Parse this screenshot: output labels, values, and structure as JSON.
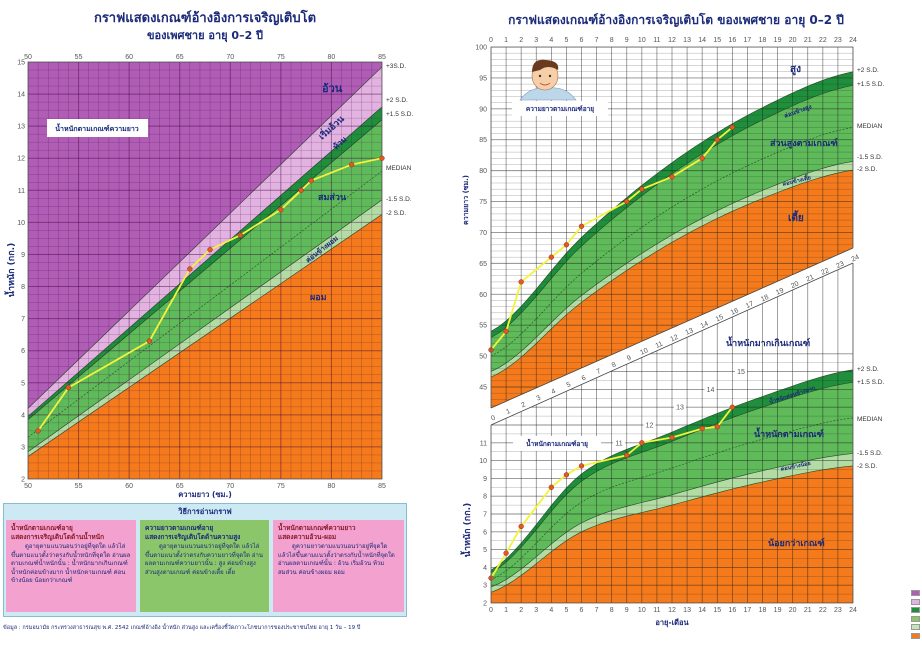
{
  "colors": {
    "obese": "#b05db6",
    "overweight_pink": "#e2b2e0",
    "dark_green": "#1f8f3c",
    "green": "#5fba5a",
    "light_green": "#b2dca4",
    "orange": "#f47a1c",
    "series_line": "#f4f23a",
    "series_point": "#e05a28",
    "title": "#1b2a7a"
  },
  "legend_swatches": [
    "#b05db6",
    "#e2b2e0",
    "#1f8f3c",
    "#8cc66a",
    "#c7e3bb",
    "#f47a1c"
  ],
  "chart_data": [
    {
      "type": "line",
      "title": "กราฟแสดงเกณฑ์อ้างอิงการเจริญเติบโต",
      "subtitle": "ของเพศชาย อายุ 0–2 ปี",
      "xlabel": "ความยาว (ซม.)",
      "ylabel": "น้ำหนัก (กก.)",
      "box_label": "น้ำหนักตามเกณฑ์ความยาว",
      "xlim": [
        50,
        85
      ],
      "ylim": [
        2,
        15
      ],
      "x_ticks": [
        50,
        55,
        60,
        65,
        70,
        75,
        80,
        85
      ],
      "y_ticks": [
        2,
        3,
        4,
        5,
        6,
        7,
        8,
        9,
        10,
        11,
        12,
        13,
        14,
        15
      ],
      "grid": true,
      "reference_lines": [
        {
          "label": "+3S.D.",
          "x": [
            50,
            85
          ],
          "y": [
            4.2,
            14.85
          ]
        },
        {
          "label": "+2 S.D.",
          "x": [
            50,
            85
          ],
          "y": [
            3.95,
            13.6
          ]
        },
        {
          "label": "+1.5 S.D.",
          "x": [
            50,
            85
          ],
          "y": [
            3.85,
            13.2
          ]
        },
        {
          "label": "MEDIAN",
          "x": [
            50,
            85
          ],
          "y": [
            3.3,
            11.6
          ]
        },
        {
          "label": "-1.5 S.D.",
          "x": [
            50,
            85
          ],
          "y": [
            2.85,
            10.7
          ]
        },
        {
          "label": "-2 S.D.",
          "x": [
            50,
            85
          ],
          "y": [
            2.7,
            10.25
          ]
        }
      ],
      "zones": [
        "อ้วน",
        "เริ่มอ้วน",
        "ท้วม",
        "สมส่วน",
        "ค่อนข้างผอม",
        "ผอม"
      ],
      "series": [
        {
          "x": [
            51,
            54,
            62,
            66,
            68,
            71,
            75,
            77,
            78,
            82,
            85
          ],
          "y": [
            3.5,
            4.85,
            6.3,
            8.55,
            9.15,
            9.6,
            10.4,
            11.0,
            11.3,
            11.8,
            12.0
          ]
        }
      ]
    },
    {
      "type": "line",
      "title": "กราฟแสดงเกณฑ์อ้างอิงการเจริญเติบโต ของเพศชาย อายุ 0–2 ปี",
      "ylabel": "ความยาว (ซม.)",
      "box_label": "ความยาวตามเกณฑ์อายุ",
      "xlim": [
        0,
        24
      ],
      "ylim": [
        45,
        100
      ],
      "x_ticks": [
        0,
        1,
        2,
        3,
        4,
        5,
        6,
        7,
        8,
        9,
        10,
        11,
        12,
        13,
        14,
        15,
        16,
        17,
        18,
        19,
        20,
        21,
        22,
        23,
        24
      ],
      "y_ticks": [
        45,
        50,
        55,
        60,
        65,
        70,
        75,
        80,
        85,
        90,
        95,
        100
      ],
      "grid": true,
      "reference_months": [
        0,
        6,
        12,
        18,
        24
      ],
      "reference_lines": [
        {
          "label": "+2 S.D.",
          "y": [
            54,
            69.2,
            81.3,
            90.2,
            96
          ]
        },
        {
          "label": "+1.5 S.D.",
          "y": [
            53,
            67.8,
            79.5,
            88.2,
            93.8
          ]
        },
        {
          "label": "MEDIAN",
          "y": [
            50,
            63.4,
            74.1,
            81.9,
            87
          ]
        },
        {
          "label": "-1.5 S.D.",
          "y": [
            47.5,
            59.8,
            69.6,
            76.8,
            81.5
          ]
        },
        {
          "label": "-2 S.D.",
          "y": [
            46.6,
            58.7,
            68.4,
            75.5,
            80.1
          ]
        }
      ],
      "zones": [
        "สูง",
        "ค่อนข้างสูง",
        "ส่วนสูงตามเกณฑ์",
        "ค่อนข้างเตี้ย",
        "เตี้ย"
      ],
      "series": [
        {
          "x": [
            0,
            1,
            2,
            4,
            5,
            6,
            9,
            10,
            12,
            14,
            15,
            16
          ],
          "y": [
            51,
            54,
            62,
            66,
            68,
            71,
            75,
            77,
            79,
            82,
            85,
            87
          ]
        }
      ]
    },
    {
      "type": "line",
      "xlabel": "อายุ-เดือน",
      "ylabel": "น้ำหนัก (กก.)",
      "box_label": "น้ำหนักตามเกณฑ์อายุ",
      "xlim": [
        0,
        24
      ],
      "ylim": [
        2,
        15
      ],
      "x_ticks": [
        0,
        1,
        2,
        3,
        4,
        5,
        6,
        7,
        8,
        9,
        10,
        11,
        12,
        13,
        14,
        15,
        16,
        17,
        18,
        19,
        20,
        21,
        22,
        23,
        24
      ],
      "y_ticks": [
        2,
        3,
        4,
        5,
        6,
        7,
        8,
        9,
        10,
        11
      ],
      "upper_y_ticks": [
        11,
        12,
        13,
        14,
        15
      ],
      "grid": true,
      "reference_months": [
        0,
        6,
        12,
        18,
        24
      ],
      "reference_lines": [
        {
          "label": "+2 S.D.",
          "y": [
            3.85,
            9.25,
            11.6,
            13.6,
            15.1
          ]
        },
        {
          "label": "+1.5 S.D.",
          "y": [
            3.7,
            8.84,
            11.08,
            13.0,
            14.4
          ]
        },
        {
          "label": "MEDIAN",
          "y": [
            3.3,
            7.67,
            9.58,
            11.2,
            12.4
          ]
        },
        {
          "label": "-1.5 S.D.",
          "y": [
            2.9,
            6.5,
            8.08,
            9.43,
            10.4
          ]
        },
        {
          "label": "-2 S.D.",
          "y": [
            2.6,
            6.0,
            7.5,
            8.8,
            9.7
          ]
        }
      ],
      "zones": [
        "น้ำหนักมากเกินเกณฑ์",
        "น้ำหนักค่อนข้างมาก",
        "น้ำหนักตามเกณฑ์",
        "ค่อนข้างน้อย",
        "น้อยกว่าเกณฑ์"
      ],
      "series": [
        {
          "x": [
            0,
            1,
            2,
            4,
            5,
            6,
            9,
            10,
            12,
            14,
            15,
            16
          ],
          "y": [
            3.4,
            4.8,
            6.3,
            8.5,
            9.2,
            9.7,
            10.3,
            11.0,
            11.3,
            11.8,
            11.9,
            13.0
          ]
        }
      ]
    }
  ],
  "guide": {
    "title": "วิธีการอ่านกราฟ",
    "panels": [
      {
        "heading": "น้ำหนักตามเกณฑ์อายุ",
        "subheading": "แสดงการเจริญเติบโตด้านน้ำหนัก",
        "body": "ดูอายุตามแนวนอนว่าอยู่ที่จุดใด แล้วไล่ขึ้นตามแนวตั้งว่าตรงกับน้ำหนักที่จุดใด อ่านผลตามเกณฑ์น้ำหนักนั้น : น้ำหนักมากเกินเกณฑ์ น้ำหนักค่อนข้างมาก น้ำหนักตามเกณฑ์ ค่อนข้างน้อย น้อยกว่าเกณฑ์"
      },
      {
        "heading": "ความยาวตามเกณฑ์อายุ",
        "subheading": "แสดงการเจริญเติบโตด้านความสูง",
        "body": "ดูอายุตามแนวนอนว่าอยู่ที่จุดใด แล้วไล่ขึ้นตามแนวตั้งว่าตรงกับความยาวที่จุดใด อ่านผลตามเกณฑ์ความยาวนั้น : สูง ค่อนข้างสูง ส่วนสูงตามเกณฑ์ ค่อนข้างเตี้ย เตี้ย"
      },
      {
        "heading": "น้ำหนักตามเกณฑ์ความยาว",
        "subheading": "แสดงความอ้วน-ผอม",
        "body": "ดูความยาวตามแนวนอนว่าอยู่ที่จุดใด แล้วไล่ขึ้นตามแนวตั้งว่าตรงกับน้ำหนักที่จุดใดอ่านผลตามเกณฑ์นั้น : อ้วน เริ่มอ้วน ท้วม สมส่วน ค่อนข้างผอม ผอม"
      }
    ]
  },
  "footer": "ข้อมูล : กรมอนามัย กระทรวงสาธารณสุข พ.ศ. 2542 เกณฑ์อ้างอิง น้ำหนัก ส่วนสูง และเครื่องชี้วัดภาวะโภชนาการของประชาชนไทย อายุ 1 วัน – 19 ปี"
}
